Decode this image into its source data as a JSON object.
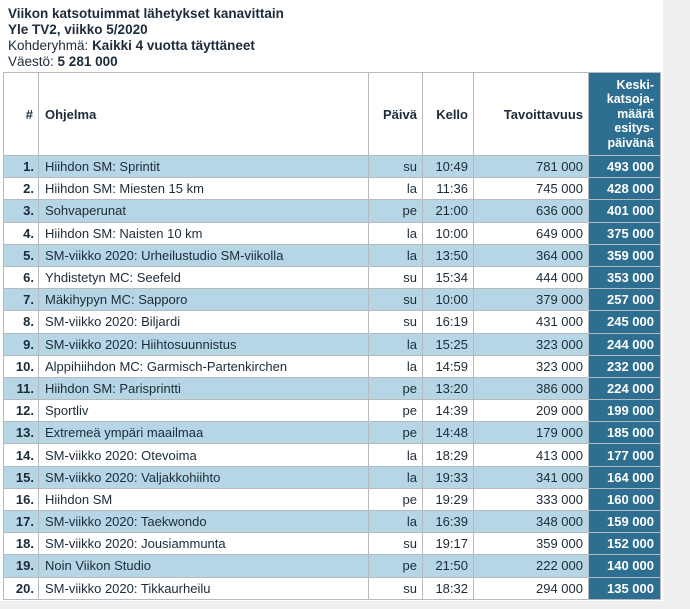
{
  "page": {
    "title_line1": "Viikon katsotuimmat lähetykset kanavittain",
    "title_line2": "Yle TV2, viikko 5/2020",
    "kohderyhma_label": "Kohderyhmä:",
    "kohderyhma_value": "Kaikki 4 vuotta täyttäneet",
    "vaesto_label": "Väestö:",
    "vaesto_value": "5 281 000"
  },
  "colors": {
    "accent_teal": "#2e6f91",
    "row_alt_blue": "#b6d6e5",
    "text_dark": "#1c2b3a",
    "border_gray": "#b3bac0",
    "page_margin_gray": "#eeeef0"
  },
  "chart_data": {
    "type": "table",
    "title": "Viikon katsotuimmat lähetykset kanavittain",
    "subtitle": "Yle TV2, viikko 5/2020",
    "target_group": "Kaikki 4 vuotta täyttäneet",
    "population": "5 281 000",
    "columns": [
      "#",
      "Ohjelma",
      "Päivä",
      "Kello",
      "Tavoittavuus",
      "Keski-katsoja-määrä esitys-päivänä"
    ],
    "rows": [
      {
        "rank": "1.",
        "program": "Hiihdon SM: Sprintit",
        "day": "su",
        "time": "10:49",
        "reach": "781 000",
        "avg": "493 000"
      },
      {
        "rank": "2.",
        "program": "Hiihdon SM: Miesten 15 km",
        "day": "la",
        "time": "11:36",
        "reach": "745 000",
        "avg": "428 000"
      },
      {
        "rank": "3.",
        "program": "Sohvaperunat",
        "day": "pe",
        "time": "21:00",
        "reach": "636 000",
        "avg": "401 000"
      },
      {
        "rank": "4.",
        "program": "Hiihdon SM: Naisten 10 km",
        "day": "la",
        "time": "10:00",
        "reach": "649 000",
        "avg": "375 000"
      },
      {
        "rank": "5.",
        "program": "SM-viikko 2020: Urheilustudio SM-viikolla",
        "day": "la",
        "time": "13:50",
        "reach": "364 000",
        "avg": "359 000"
      },
      {
        "rank": "6.",
        "program": "Yhdistetyn MC: Seefeld",
        "day": "su",
        "time": "15:34",
        "reach": "444 000",
        "avg": "353 000"
      },
      {
        "rank": "7.",
        "program": "Mäkihypyn MC: Sapporo",
        "day": "su",
        "time": "10:00",
        "reach": "379 000",
        "avg": "257 000"
      },
      {
        "rank": "8.",
        "program": "SM-viikko 2020: Biljardi",
        "day": "su",
        "time": "16:19",
        "reach": "431 000",
        "avg": "245 000"
      },
      {
        "rank": "9.",
        "program": "SM-viikko 2020: Hiihtosuunnistus",
        "day": "la",
        "time": "15:25",
        "reach": "323 000",
        "avg": "244 000"
      },
      {
        "rank": "10.",
        "program": "Alppihiihdon MC: Garmisch-Partenkirchen",
        "day": "la",
        "time": "14:59",
        "reach": "323 000",
        "avg": "232 000"
      },
      {
        "rank": "11.",
        "program": "Hiihdon SM: Parisprintti",
        "day": "pe",
        "time": "13:20",
        "reach": "386 000",
        "avg": "224 000"
      },
      {
        "rank": "12.",
        "program": "Sportliv",
        "day": "pe",
        "time": "14:39",
        "reach": "209 000",
        "avg": "199 000"
      },
      {
        "rank": "13.",
        "program": "Extremeä ympäri maailmaa",
        "day": "pe",
        "time": "14:48",
        "reach": "179 000",
        "avg": "185 000"
      },
      {
        "rank": "14.",
        "program": "SM-viikko 2020: Otevoima",
        "day": "la",
        "time": "18:29",
        "reach": "413 000",
        "avg": "177 000"
      },
      {
        "rank": "15.",
        "program": "SM-viikko 2020: Valjakkohiihto",
        "day": "la",
        "time": "19:33",
        "reach": "341 000",
        "avg": "164 000"
      },
      {
        "rank": "16.",
        "program": "Hiihdon SM",
        "day": "pe",
        "time": "19:29",
        "reach": "333 000",
        "avg": "160 000"
      },
      {
        "rank": "17.",
        "program": "SM-viikko 2020: Taekwondo",
        "day": "la",
        "time": "16:39",
        "reach": "348 000",
        "avg": "159 000"
      },
      {
        "rank": "18.",
        "program": "SM-viikko 2020: Jousiammunta",
        "day": "su",
        "time": "19:17",
        "reach": "359 000",
        "avg": "152 000"
      },
      {
        "rank": "19.",
        "program": "Noin Viikon Studio",
        "day": "pe",
        "time": "21:50",
        "reach": "222 000",
        "avg": "140 000"
      },
      {
        "rank": "20.",
        "program": "SM-viikko 2020: Tikkaurheilu",
        "day": "su",
        "time": "18:32",
        "reach": "294 000",
        "avg": "135 000"
      }
    ]
  }
}
